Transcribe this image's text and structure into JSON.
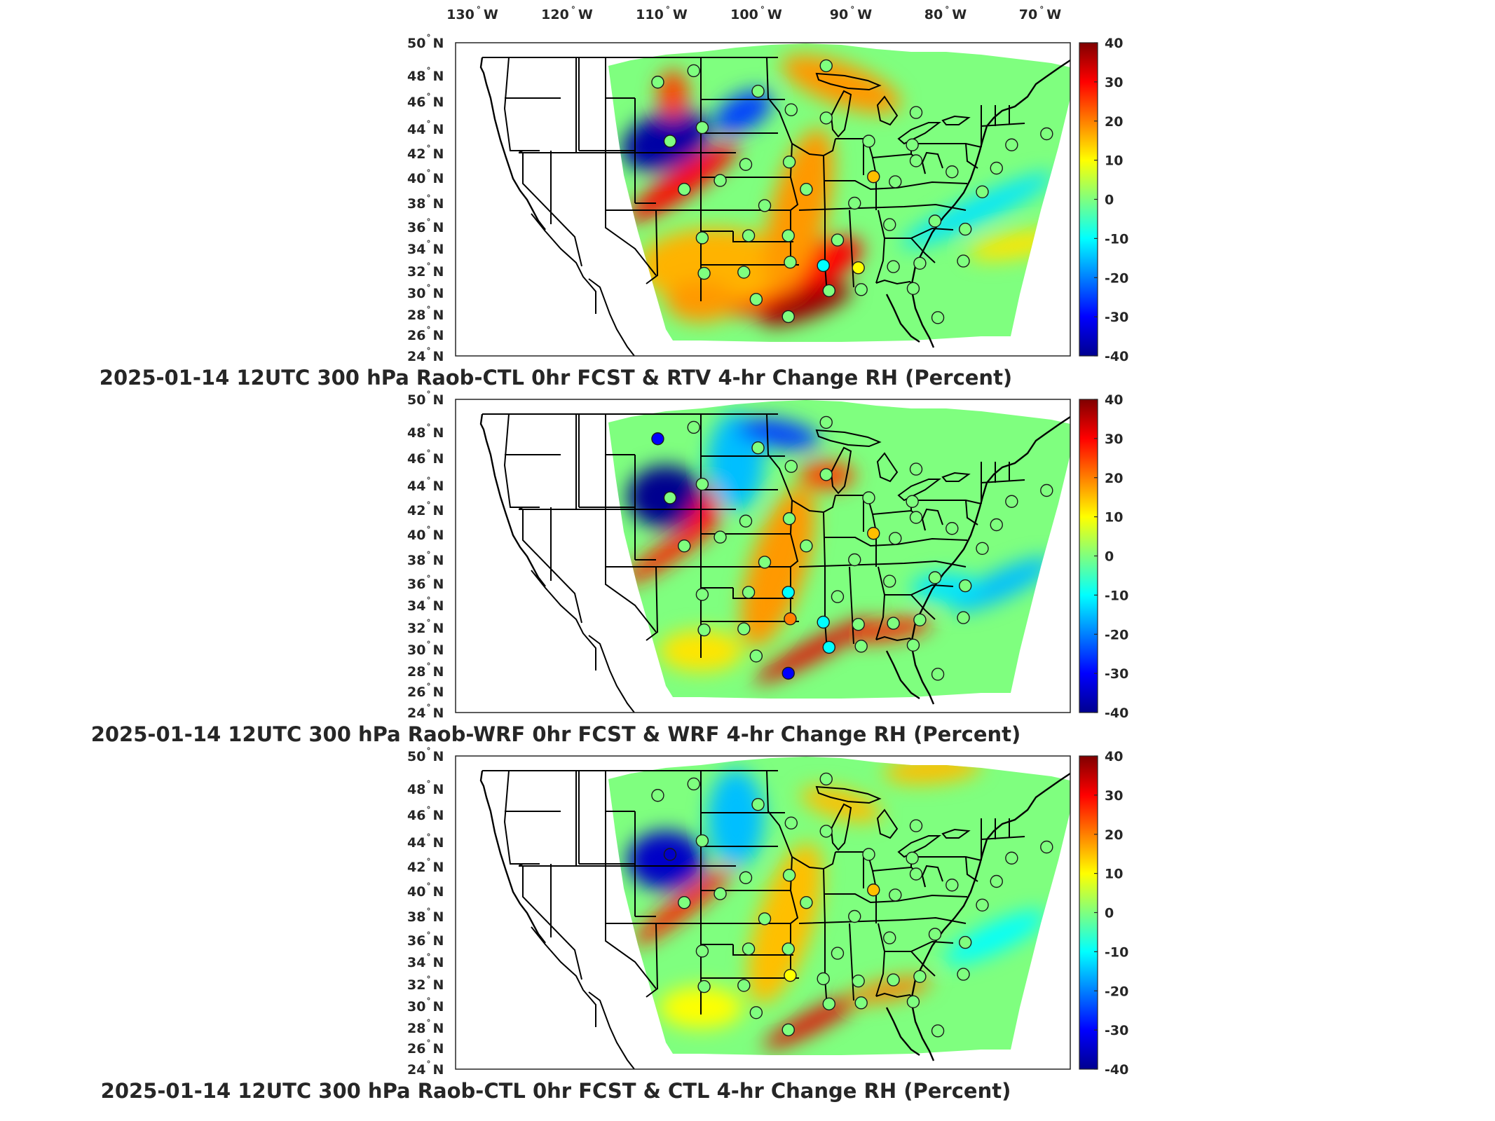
{
  "figure": {
    "top_longitude_labels": [
      {
        "lon": -130,
        "text": "130",
        "suffix": "W"
      },
      {
        "lon": -120,
        "text": "120",
        "suffix": "W"
      },
      {
        "lon": -110,
        "text": "110",
        "suffix": "W"
      },
      {
        "lon": -100,
        "text": "100",
        "suffix": "W"
      },
      {
        "lon": -90,
        "text": "90",
        "suffix": "W"
      },
      {
        "lon": -80,
        "text": "80",
        "suffix": "W"
      },
      {
        "lon": -70,
        "text": "70",
        "suffix": "W"
      }
    ],
    "latitude_labels": [
      {
        "lat": 50,
        "text": "50",
        "suffix": "N"
      },
      {
        "lat": 48,
        "text": "48",
        "suffix": "N"
      },
      {
        "lat": 46,
        "text": "46",
        "suffix": "N"
      },
      {
        "lat": 44,
        "text": "44",
        "suffix": "N"
      },
      {
        "lat": 42,
        "text": "42",
        "suffix": "N"
      },
      {
        "lat": 40,
        "text": "40",
        "suffix": "N"
      },
      {
        "lat": 38,
        "text": "38",
        "suffix": "N"
      },
      {
        "lat": 36,
        "text": "36",
        "suffix": "N"
      },
      {
        "lat": 34,
        "text": "34",
        "suffix": "N"
      },
      {
        "lat": 32,
        "text": "32",
        "suffix": "N"
      },
      {
        "lat": 30,
        "text": "30",
        "suffix": "N"
      },
      {
        "lat": 28,
        "text": "28",
        "suffix": "N"
      },
      {
        "lat": 26,
        "text": "26",
        "suffix": "N"
      },
      {
        "lat": 24,
        "text": "24",
        "suffix": "N"
      }
    ],
    "colorbar": {
      "min": -40,
      "max": 40,
      "ticks": [
        "40",
        "30",
        "20",
        "10",
        "0",
        "-10",
        "-20",
        "-30",
        "-40"
      ],
      "colormap": "jet"
    },
    "colors": {
      "dark_blue": "#00008f",
      "blue": "#0050ff",
      "cyan": "#00d0ff",
      "green": "#7fff7f",
      "yellow": "#ffe000",
      "orange": "#ff7000",
      "dark_red": "#7f0000"
    }
  },
  "panels": [
    {
      "id": "panel-1",
      "title": "2025-01-14 12UTC 300 hPa Raob-CTL 0hr FCST & RTV 4-hr Change RH (Percent)"
    },
    {
      "id": "panel-2",
      "title": "2025-01-14 12UTC 300 hPa Raob-WRF 0hr FCST & WRF 4-hr Change RH (Percent)"
    },
    {
      "id": "panel-3",
      "title": "2025-01-14 12UTC 300 hPa Raob-CTL 0hr FCST & CTL 4-hr Change RH (Percent)"
    }
  ],
  "stations": [
    {
      "lon": -111.3,
      "lat": 47.5,
      "v": [
        0,
        -30,
        0
      ]
    },
    {
      "lon": -107.5,
      "lat": 48.3,
      "v": [
        0,
        0,
        0
      ]
    },
    {
      "lon": -100.7,
      "lat": 46.8,
      "v": [
        0,
        0,
        0
      ]
    },
    {
      "lon": -97.2,
      "lat": 45.4,
      "v": [
        0,
        0,
        0
      ]
    },
    {
      "lon": -93.5,
      "lat": 48.6,
      "v": [
        0,
        0,
        0
      ]
    },
    {
      "lon": -106.6,
      "lat": 44.1,
      "v": [
        0,
        0,
        0
      ]
    },
    {
      "lon": -110.0,
      "lat": 43.0,
      "v": [
        0,
        0,
        -35
      ]
    },
    {
      "lon": -102.0,
      "lat": 41.1,
      "v": [
        0,
        0,
        0
      ]
    },
    {
      "lon": -97.4,
      "lat": 41.3,
      "v": [
        0,
        0,
        0
      ]
    },
    {
      "lon": -93.5,
      "lat": 44.8,
      "v": [
        0,
        0,
        0
      ]
    },
    {
      "lon": -89.0,
      "lat": 43.0,
      "v": [
        0,
        0,
        0
      ]
    },
    {
      "lon": -84.4,
      "lat": 42.7,
      "v": [
        0,
        0,
        0
      ]
    },
    {
      "lon": -84.0,
      "lat": 45.2,
      "v": [
        0,
        0,
        0
      ]
    },
    {
      "lon": -88.5,
      "lat": 40.1,
      "v": [
        15,
        15,
        15
      ]
    },
    {
      "lon": -108.5,
      "lat": 39.1,
      "v": [
        0,
        0,
        0
      ]
    },
    {
      "lon": -104.7,
      "lat": 39.8,
      "v": [
        0,
        0,
        0
      ]
    },
    {
      "lon": -100.0,
      "lat": 37.8,
      "v": [
        0,
        0,
        0
      ]
    },
    {
      "lon": -95.6,
      "lat": 39.1,
      "v": [
        0,
        0,
        0
      ]
    },
    {
      "lon": -90.5,
      "lat": 38.0,
      "v": [
        0,
        0,
        0
      ]
    },
    {
      "lon": -86.2,
      "lat": 39.7,
      "v": [
        0,
        0,
        0
      ]
    },
    {
      "lon": -84.0,
      "lat": 41.4,
      "v": [
        0,
        0,
        0
      ]
    },
    {
      "lon": -80.2,
      "lat": 40.5,
      "v": [
        0,
        0,
        0
      ]
    },
    {
      "lon": -77.0,
      "lat": 38.9,
      "v": [
        0,
        0,
        0
      ]
    },
    {
      "lon": -75.5,
      "lat": 40.8,
      "v": [
        0,
        0,
        0
      ]
    },
    {
      "lon": -73.9,
      "lat": 42.7,
      "v": [
        0,
        0,
        0
      ]
    },
    {
      "lon": -70.2,
      "lat": 43.6,
      "v": [
        0,
        0,
        0
      ]
    },
    {
      "lon": -106.6,
      "lat": 35.0,
      "v": [
        0,
        0,
        0
      ]
    },
    {
      "lon": -101.7,
      "lat": 35.2,
      "v": [
        0,
        0,
        0
      ]
    },
    {
      "lon": -97.5,
      "lat": 35.2,
      "v": [
        0,
        -10,
        0
      ]
    },
    {
      "lon": -92.3,
      "lat": 34.8,
      "v": [
        0,
        0,
        0
      ]
    },
    {
      "lon": -86.8,
      "lat": 36.2,
      "v": [
        0,
        0,
        0
      ]
    },
    {
      "lon": -82.0,
      "lat": 36.5,
      "v": [
        0,
        0,
        0
      ]
    },
    {
      "lon": -78.8,
      "lat": 35.8,
      "v": [
        0,
        0,
        0
      ]
    },
    {
      "lon": -106.4,
      "lat": 31.8,
      "v": [
        0,
        0,
        0
      ]
    },
    {
      "lon": -102.2,
      "lat": 31.9,
      "v": [
        0,
        0,
        0
      ]
    },
    {
      "lon": -97.3,
      "lat": 32.8,
      "v": [
        0,
        20,
        10
      ]
    },
    {
      "lon": -93.8,
      "lat": 32.5,
      "v": [
        -10,
        -10,
        0
      ]
    },
    {
      "lon": -90.1,
      "lat": 32.3,
      "v": [
        10,
        0,
        0
      ]
    },
    {
      "lon": -86.4,
      "lat": 32.4,
      "v": [
        0,
        0,
        0
      ]
    },
    {
      "lon": -83.6,
      "lat": 32.7,
      "v": [
        0,
        0,
        0
      ]
    },
    {
      "lon": -79.0,
      "lat": 32.9,
      "v": [
        0,
        0,
        0
      ]
    },
    {
      "lon": -100.9,
      "lat": 29.4,
      "v": [
        0,
        0,
        0
      ]
    },
    {
      "lon": -97.5,
      "lat": 27.8,
      "v": [
        0,
        -30,
        0
      ]
    },
    {
      "lon": -93.2,
      "lat": 30.2,
      "v": [
        0,
        -10,
        0
      ]
    },
    {
      "lon": -89.8,
      "lat": 30.3,
      "v": [
        0,
        0,
        0
      ]
    },
    {
      "lon": -84.3,
      "lat": 30.4,
      "v": [
        0,
        0,
        0
      ]
    },
    {
      "lon": -81.7,
      "lat": 27.7,
      "v": [
        0,
        0,
        0
      ]
    }
  ]
}
